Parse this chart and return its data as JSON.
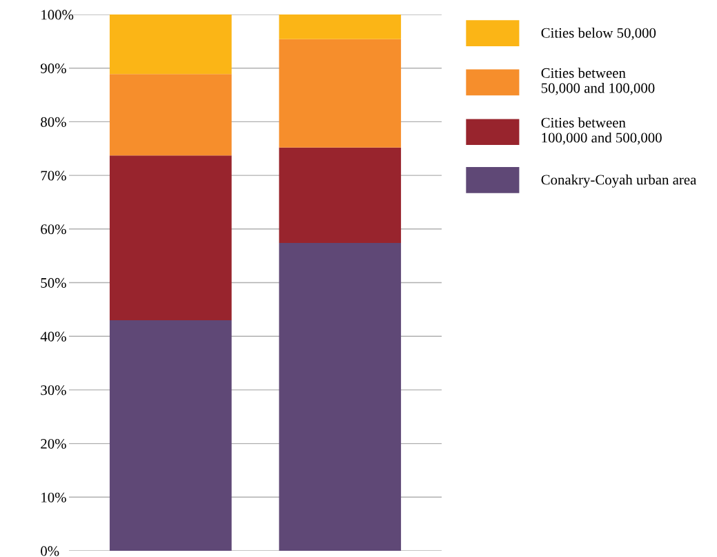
{
  "chart_data": {
    "type": "bar",
    "stacked": true,
    "categories": [
      null,
      null
    ],
    "series": [
      {
        "name": "Conakry-Coyah urban area",
        "color": "#5f4876",
        "values": [
          43.0,
          57.4
        ]
      },
      {
        "name": "Cities between\n100,000 and 500,000",
        "color": "#98242d",
        "values": [
          30.7,
          17.8
        ]
      },
      {
        "name": "Cities between\n50,000 and 100,000",
        "color": "#f68e2c",
        "values": [
          15.2,
          20.2
        ]
      },
      {
        "name": "Cities below 50,000",
        "color": "#fbb516",
        "values": [
          11.1,
          4.6
        ]
      }
    ],
    "ylim": [
      0,
      100
    ],
    "yticks": [
      {
        "value": 0,
        "label": "0%"
      },
      {
        "value": 10,
        "label": "10%"
      },
      {
        "value": 20,
        "label": "20%"
      },
      {
        "value": 30,
        "label": "30%"
      },
      {
        "value": 40,
        "label": "40%"
      },
      {
        "value": 50,
        "label": "50%"
      },
      {
        "value": 60,
        "label": "60%"
      },
      {
        "value": 70,
        "label": "70%"
      },
      {
        "value": 80,
        "label": "80%"
      },
      {
        "value": 90,
        "label": "90%"
      },
      {
        "value": 100,
        "label": "100%"
      }
    ],
    "grid": "y",
    "legend": "right"
  }
}
